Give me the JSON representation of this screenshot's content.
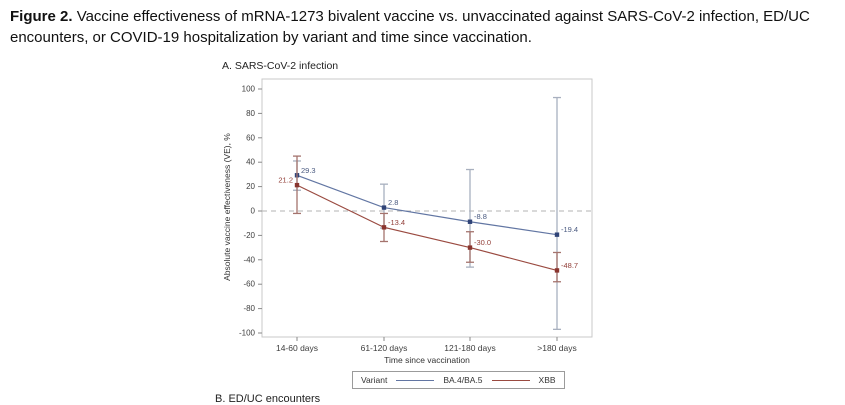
{
  "caption": {
    "label": "Figure 2.",
    "text": "Vaccine effectiveness of mRNA-1273 bivalent vaccine vs. unvaccinated against SARS-CoV-2 infection, ED/UC encounters, or COVID-19 hospitalization by variant and time since vaccination."
  },
  "panel_a": {
    "title": "A. SARS-CoV-2 infection"
  },
  "panel_b": {
    "title": "B. ED/UC encounters"
  },
  "chart_data": {
    "type": "line",
    "title": "A. SARS-CoV-2 infection",
    "xlabel": "Time since vaccination",
    "ylabel": "Absolute vaccine effectiveness (VE), %",
    "categories": [
      "14-60 days",
      "61-120 days",
      "121-180 days",
      ">180 days"
    ],
    "ylim": [
      -100,
      100
    ],
    "ytick_step": 20,
    "grid": false,
    "zero_reference_line_dashed": true,
    "legend": {
      "title": "Variant",
      "position": "bottom"
    },
    "frame_color": "#c9c9c9",
    "zero_line_color": "#b3b3b3",
    "series": [
      {
        "name": "BA.4/BA.5",
        "values": [
          29.3,
          2.8,
          -8.8,
          -19.4
        ],
        "labels": [
          "29.3",
          "2.8",
          "-8.8",
          "-19.4"
        ],
        "ci_low": [
          17,
          -14,
          -46,
          -97
        ],
        "ci_high": [
          41,
          22,
          34,
          93
        ],
        "label_side": [
          "right",
          "right",
          "right",
          "right"
        ],
        "line_color": "#6276a3",
        "marker_color": "#2f4377",
        "label_color": "#4a5a80",
        "error_color": "#a8b0bf"
      },
      {
        "name": "XBB",
        "values": [
          21.2,
          -13.4,
          -30.0,
          -48.7
        ],
        "labels": [
          "21.2",
          "-13.4",
          "-30.0",
          "-48.7"
        ],
        "ci_low": [
          -2,
          -25,
          -42,
          -58
        ],
        "ci_high": [
          45,
          -2,
          -17,
          -34
        ],
        "label_side": [
          "left",
          "right",
          "right",
          "right"
        ],
        "line_color": "#9a4a40",
        "marker_color": "#8a352e",
        "label_color": "#93403a",
        "error_color": "#a4736d"
      }
    ]
  }
}
